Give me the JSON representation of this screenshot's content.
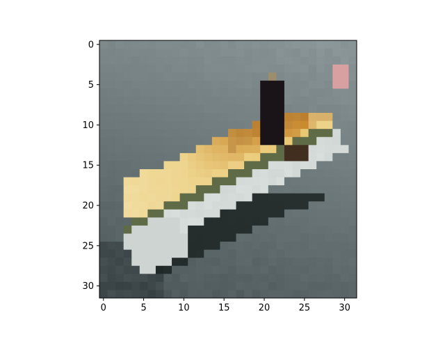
{
  "chart_data": {
    "type": "heatmap",
    "title": "",
    "xlabel": "",
    "ylabel": "",
    "xlim": [
      -0.5,
      31.5
    ],
    "ylim": [
      31.5,
      -0.5
    ],
    "grid": false,
    "x_ticks": [
      0,
      5,
      10,
      15,
      20,
      25,
      30
    ],
    "y_ticks": [
      0,
      5,
      10,
      15,
      20,
      25,
      30
    ],
    "x_tick_labels": [
      "0",
      "5",
      "10",
      "15",
      "20",
      "25",
      "30"
    ],
    "y_tick_labels": [
      "0",
      "5",
      "10",
      "15",
      "20",
      "25",
      "30"
    ],
    "image": {
      "description_colors": {
        "water_light": "#8e9a9b",
        "water_mid": "#6f7b7d",
        "water_dark": "#4a5557",
        "water_deep": "#2a3336",
        "hull_white": "#d8dedb",
        "hull_shadow": "#1c2322",
        "deck_cream": "#f2dfa6",
        "deck_yellow": "#e9c873",
        "deck_orange": "#c9892f",
        "deck_brown": "#9e6a2c",
        "trim_green": "#5f6a47",
        "pink": "#d9a0a2",
        "figure_dark": "#1a1418"
      }
    }
  }
}
